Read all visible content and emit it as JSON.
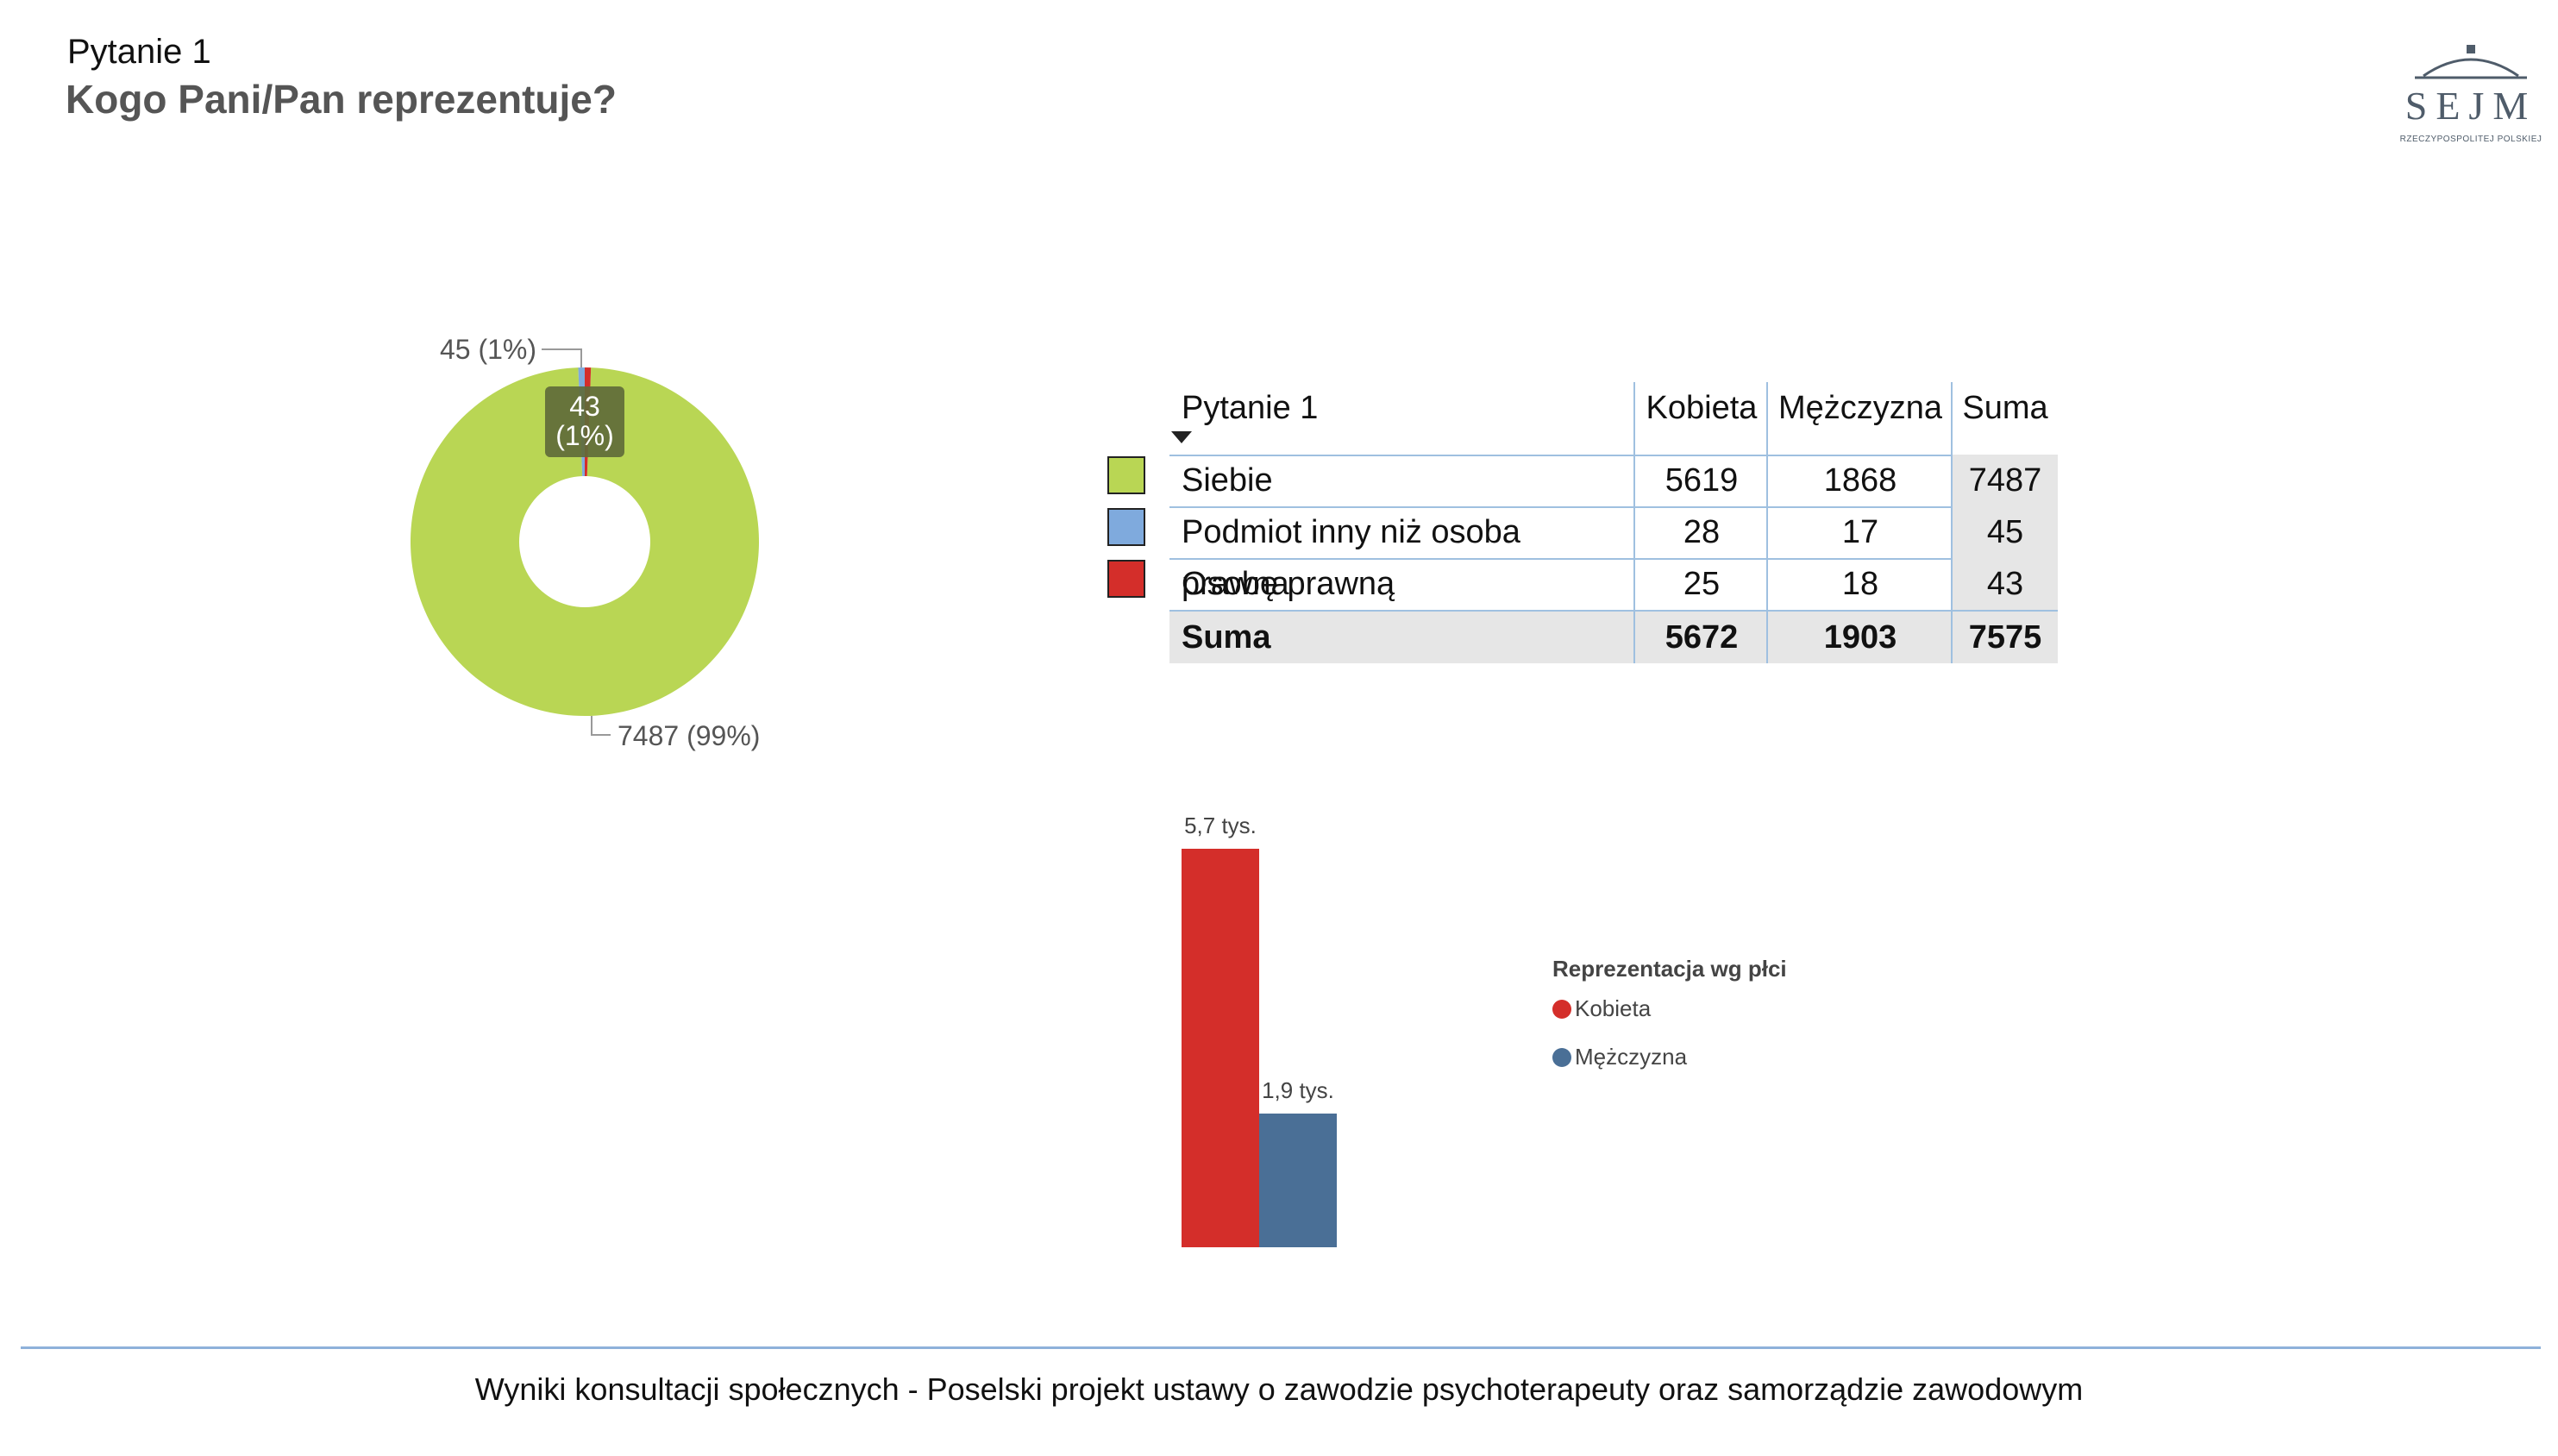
{
  "header": {
    "question_label": "Pytanie 1",
    "question_title": "Kogo Pani/Pan reprezentuje?"
  },
  "logo": {
    "text": "SEJM",
    "subtitle": "RZECZYPOSPOLITEJ POLSKIEJ",
    "icon": "sejm-dome-icon",
    "accent": "#c62828"
  },
  "chart_data": [
    {
      "type": "pie",
      "variant": "donut",
      "categories": [
        "Siebie",
        "Podmiot inny niż osoba prawna",
        "Osobę prawną"
      ],
      "values": [
        7487,
        45,
        43
      ],
      "colors": [
        "#b9d654",
        "#7faadd",
        "#d42e2a"
      ],
      "data_labels": [
        "7487 (99%)",
        "45 (1%)",
        "43\n(1%)"
      ]
    },
    {
      "type": "bar",
      "categories": [
        "Kobieta",
        "Mężczyzna"
      ],
      "values": [
        5672,
        1903
      ],
      "colors": [
        "#d42e2a",
        "#4a6f96"
      ],
      "data_labels": [
        "5,7 tys.",
        "1,9 tys."
      ],
      "legend_title": "Reprezentacja wg płci",
      "legend": [
        "Kobieta",
        "Mężczyzna"
      ],
      "legend_position": "right"
    }
  ],
  "table": {
    "headers": [
      "Pytanie 1",
      "Kobieta",
      "Mężczyzna",
      "Suma"
    ],
    "rows": [
      {
        "name": "Siebie",
        "kobieta": "5619",
        "mezczyzna": "1868",
        "suma": "7487",
        "color": "#b9d654"
      },
      {
        "name": "Podmiot inny niż osoba prawna",
        "kobieta": "28",
        "mezczyzna": "17",
        "suma": "45",
        "color": "#7faadd"
      },
      {
        "name": "Osobę prawną",
        "kobieta": "25",
        "mezczyzna": "18",
        "suma": "43",
        "color": "#d42e2a"
      }
    ],
    "total": {
      "name": "Suma",
      "kobieta": "5672",
      "mezczyzna": "1903",
      "suma": "7575"
    }
  },
  "footer": {
    "text": "Wyniki konsultacji społecznych - Poselski projekt ustawy o zawodzie psychoterapeuty oraz samorządzie zawodowym"
  }
}
